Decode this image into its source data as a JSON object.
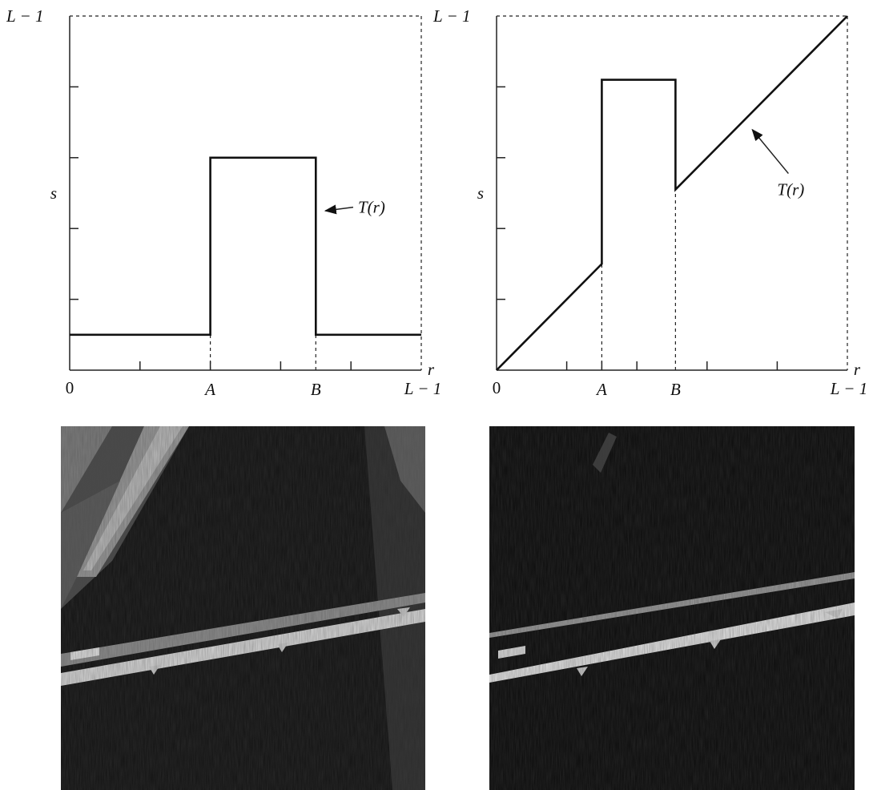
{
  "chart_data": [
    {
      "type": "line",
      "name_tag": "left",
      "xlabel": "r",
      "ylabel": "s",
      "x_tick_labels": {
        "origin": "0",
        "A": "A",
        "B": "B",
        "max": "L − 1"
      },
      "y_tick_labels": {
        "max": "L − 1"
      },
      "xlim": [
        0,
        1
      ],
      "ylim": [
        0,
        1
      ],
      "x_ticks": [
        0.2,
        0.4,
        0.6,
        0.8
      ],
      "y_ticks": [
        0.2,
        0.4,
        0.6,
        0.8
      ],
      "A": 0.4,
      "B": 0.7,
      "curve": [
        [
          0,
          0.1
        ],
        [
          0.4,
          0.1
        ],
        [
          0.4,
          0.6
        ],
        [
          0.7,
          0.6
        ],
        [
          0.7,
          0.1
        ],
        [
          1.0,
          0.1
        ]
      ],
      "annotation": {
        "text": "T(r)",
        "at": [
          0.7,
          0.45
        ],
        "text_pos": [
          0.82,
          0.46
        ]
      }
    },
    {
      "type": "line",
      "name_tag": "right",
      "xlabel": "r",
      "ylabel": "s",
      "x_tick_labels": {
        "origin": "0",
        "A": "A",
        "B": "B",
        "max": "L − 1"
      },
      "y_tick_labels": {
        "max": "L − 1"
      },
      "xlim": [
        0,
        1
      ],
      "ylim": [
        0,
        1
      ],
      "x_ticks": [
        0.2,
        0.3,
        0.4,
        0.6,
        0.8
      ],
      "y_ticks": [
        0.2,
        0.4,
        0.6,
        0.8
      ],
      "A": 0.3,
      "B": 0.51,
      "curve": [
        [
          0,
          0
        ],
        [
          0.3,
          0.3
        ],
        [
          0.3,
          0.82
        ],
        [
          0.51,
          0.82
        ],
        [
          0.51,
          0.51
        ],
        [
          1.0,
          1.0
        ]
      ],
      "annotation": {
        "text": "T(r)",
        "at": [
          0.72,
          0.67
        ],
        "text_pos": [
          0.8,
          0.51
        ]
      }
    }
  ],
  "images": [
    {
      "name": "original-image",
      "description_tone": "grayscale aerial"
    },
    {
      "name": "processed-image",
      "description_tone": "grayscale aerial"
    }
  ]
}
